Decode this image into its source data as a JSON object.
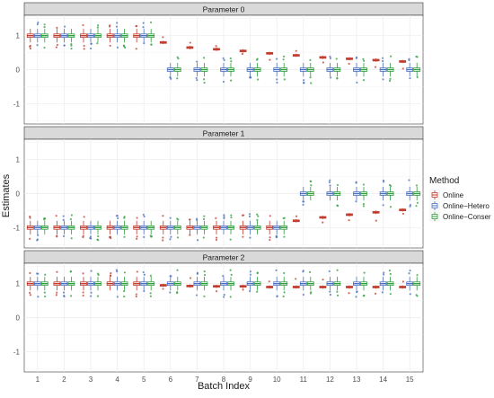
{
  "chart_data": {
    "type": "boxplot",
    "xlabel": "Batch Index",
    "ylabel": "Estimates",
    "categories": [
      "1",
      "2",
      "3",
      "4",
      "5",
      "6",
      "7",
      "8",
      "9",
      "10",
      "11",
      "12",
      "13",
      "14",
      "15"
    ],
    "ylim": [
      -1.6,
      1.6
    ],
    "yticks": [
      -1,
      0,
      1
    ],
    "grid": true,
    "legend": {
      "title": "Method",
      "position": "right",
      "entries": [
        "Online",
        "Online−Hetero",
        "Online−Conser"
      ]
    },
    "colors": {
      "Online": "#c0392b",
      "Online-Hetero": "#4a6fc0",
      "Online-Conser": "#2e9e3e",
      "strip": "#d9d9d9",
      "grid": "#ececec"
    },
    "panels": [
      {
        "title": "Parameter 0",
        "series": [
          {
            "name": "Online",
            "medians": [
              1.0,
              1.0,
              1.0,
              1.0,
              1.0,
              0.8,
              0.65,
              0.6,
              0.55,
              0.48,
              0.42,
              0.36,
              0.32,
              0.28,
              0.24
            ]
          },
          {
            "name": "Online−Hetero",
            "medians": [
              1.0,
              1.0,
              1.0,
              1.0,
              1.0,
              0.0,
              0.0,
              0.0,
              0.0,
              0.0,
              0.0,
              0.0,
              0.0,
              0.0,
              0.0
            ]
          },
          {
            "name": "Online−Conser",
            "medians": [
              1.0,
              1.0,
              1.0,
              1.0,
              1.0,
              0.0,
              0.0,
              0.0,
              0.0,
              0.0,
              0.0,
              0.0,
              0.0,
              0.0,
              0.0
            ]
          }
        ]
      },
      {
        "title": "Parameter 1",
        "series": [
          {
            "name": "Online",
            "medians": [
              -1.0,
              -1.0,
              -1.0,
              -1.0,
              -1.0,
              -1.0,
              -1.0,
              -1.0,
              -1.0,
              -1.0,
              -0.8,
              -0.7,
              -0.62,
              -0.55,
              -0.48
            ]
          },
          {
            "name": "Online−Hetero",
            "medians": [
              -1.0,
              -1.0,
              -1.0,
              -1.0,
              -1.0,
              -1.0,
              -1.0,
              -1.0,
              -1.0,
              -1.0,
              0.0,
              0.0,
              0.0,
              0.0,
              0.0
            ]
          },
          {
            "name": "Online−Conser",
            "medians": [
              -1.0,
              -1.0,
              -1.0,
              -1.0,
              -1.0,
              -1.0,
              -1.0,
              -1.0,
              -1.0,
              -1.0,
              0.0,
              0.0,
              0.0,
              0.0,
              0.0
            ]
          }
        ]
      },
      {
        "title": "Parameter 2",
        "series": [
          {
            "name": "Online",
            "medians": [
              1.0,
              1.0,
              1.0,
              1.0,
              1.0,
              0.95,
              0.93,
              0.92,
              0.92,
              0.9,
              0.9,
              0.9,
              0.9,
              0.9,
              0.9
            ]
          },
          {
            "name": "Online−Hetero",
            "medians": [
              1.0,
              1.0,
              1.0,
              1.0,
              1.0,
              1.0,
              1.0,
              1.0,
              1.0,
              1.0,
              1.0,
              1.0,
              1.0,
              1.0,
              1.0
            ]
          },
          {
            "name": "Online−Conser",
            "medians": [
              1.0,
              1.0,
              1.0,
              1.0,
              1.0,
              1.0,
              1.0,
              1.0,
              1.0,
              1.0,
              1.0,
              1.0,
              1.0,
              1.0,
              1.0
            ]
          }
        ]
      }
    ]
  }
}
